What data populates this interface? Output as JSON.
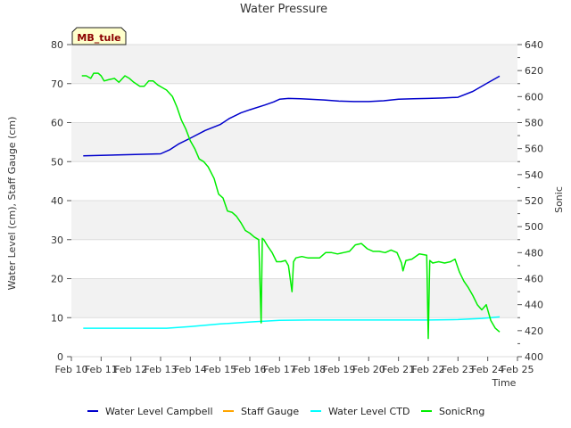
{
  "chart_data": {
    "type": "line",
    "title": "Water Pressure",
    "xlabel": "Time",
    "ylabel": "Water Level (cm), Staff Gauge (cm)",
    "y2label": "Sonic",
    "badge": "MB_tule",
    "xlim": [
      10,
      25
    ],
    "ylim": [
      0,
      80
    ],
    "y2lim": [
      400,
      640
    ],
    "x_ticks": [
      {
        "value": 10,
        "label": "Feb 10"
      },
      {
        "value": 11,
        "label": "Feb 11"
      },
      {
        "value": 12,
        "label": "Feb 12"
      },
      {
        "value": 13,
        "label": "Feb 13"
      },
      {
        "value": 14,
        "label": "Feb 14"
      },
      {
        "value": 15,
        "label": "Feb 15"
      },
      {
        "value": 16,
        "label": "Feb 16"
      },
      {
        "value": 17,
        "label": "Feb 17"
      },
      {
        "value": 18,
        "label": "Feb 18"
      },
      {
        "value": 19,
        "label": "Feb 19"
      },
      {
        "value": 20,
        "label": "Feb 20"
      },
      {
        "value": 21,
        "label": "Feb 21"
      },
      {
        "value": 22,
        "label": "Feb 22"
      },
      {
        "value": 23,
        "label": "Feb 23"
      },
      {
        "value": 24,
        "label": "Feb 24"
      },
      {
        "value": 25,
        "label": "Feb 25"
      }
    ],
    "y_ticks": [
      0,
      10,
      20,
      30,
      40,
      50,
      60,
      70,
      80
    ],
    "y2_ticks": [
      400,
      420,
      440,
      460,
      480,
      500,
      520,
      540,
      560,
      580,
      600,
      620,
      640
    ],
    "series": [
      {
        "name": "Water Level Campbell",
        "color": "#0000cc",
        "axis": "left",
        "x": [
          10.4,
          12.0,
          13.0,
          13.3,
          13.6,
          14.0,
          14.5,
          15.0,
          15.3,
          15.7,
          16.0,
          16.5,
          16.8,
          17.0,
          17.3,
          17.7,
          18.0,
          18.5,
          19.0,
          19.5,
          20.0,
          20.5,
          21.0,
          21.5,
          22.0,
          22.5,
          23.0,
          23.5,
          24.0,
          24.4
        ],
        "y": [
          51.5,
          51.8,
          52.0,
          53.0,
          54.5,
          56.0,
          58.0,
          59.5,
          61.0,
          62.5,
          63.3,
          64.5,
          65.3,
          66.0,
          66.2,
          66.1,
          66.0,
          65.8,
          65.5,
          65.4,
          65.4,
          65.6,
          66.0,
          66.1,
          66.2,
          66.3,
          66.5,
          68.0,
          70.2,
          71.9
        ]
      },
      {
        "name": "Staff Gauge",
        "color": "#ffa500",
        "axis": "left",
        "x": [],
        "y": []
      },
      {
        "name": "Water Level CTD",
        "color": "#00ffff",
        "axis": "left",
        "x": [
          10.4,
          11.5,
          12.5,
          13.2,
          14.0,
          15.0,
          16.0,
          17.0,
          18.0,
          19.0,
          20.0,
          21.0,
          22.0,
          23.0,
          23.8,
          24.4
        ],
        "y": [
          7.3,
          7.3,
          7.3,
          7.3,
          7.7,
          8.4,
          8.9,
          9.3,
          9.4,
          9.4,
          9.4,
          9.4,
          9.4,
          9.5,
          9.8,
          10.2
        ]
      },
      {
        "name": "SonicRng",
        "color": "#00ee00",
        "axis": "right",
        "x": [
          10.35,
          10.5,
          10.65,
          10.75,
          10.9,
          11.0,
          11.1,
          11.25,
          11.45,
          11.6,
          11.8,
          11.95,
          12.1,
          12.3,
          12.45,
          12.6,
          12.75,
          12.9,
          13.05,
          13.2,
          13.4,
          13.55,
          13.7,
          13.85,
          14.0,
          14.15,
          14.3,
          14.45,
          14.6,
          14.8,
          14.95,
          15.1,
          15.25,
          15.4,
          15.55,
          15.7,
          15.85,
          16.0,
          16.15,
          16.3,
          16.38,
          16.42,
          16.47,
          16.6,
          16.75,
          16.9,
          17.05,
          17.2,
          17.3,
          17.42,
          17.47,
          17.55,
          17.75,
          17.95,
          18.15,
          18.35,
          18.55,
          18.75,
          18.95,
          19.15,
          19.35,
          19.55,
          19.75,
          19.95,
          20.15,
          20.35,
          20.55,
          20.75,
          20.95,
          21.1,
          21.15,
          21.25,
          21.45,
          21.7,
          21.95,
          22.0,
          22.05,
          22.15,
          22.35,
          22.55,
          22.75,
          22.9,
          23.05,
          23.2,
          23.35,
          23.5,
          23.65,
          23.8,
          23.95,
          24.1,
          24.25,
          24.4
        ],
        "y": [
          616,
          616,
          614,
          618,
          618,
          616,
          612,
          613,
          614,
          611,
          616,
          614,
          611,
          608,
          608,
          612,
          612,
          609,
          607,
          605,
          600,
          592,
          582,
          575,
          566,
          560,
          552,
          550,
          546,
          537,
          525,
          522,
          512,
          511,
          508,
          503,
          497,
          495,
          492,
          490,
          426,
          491,
          490,
          485,
          480,
          473,
          473,
          474,
          470,
          450,
          473,
          476,
          477,
          476,
          476,
          476,
          480,
          480,
          479,
          480,
          481,
          486,
          487,
          483,
          481,
          481,
          480,
          482,
          480,
          472,
          466,
          474,
          475,
          479,
          478,
          414,
          474,
          472,
          473,
          472,
          473,
          475,
          465,
          458,
          453,
          447,
          440,
          436,
          440,
          428,
          422,
          419
        ]
      }
    ]
  }
}
